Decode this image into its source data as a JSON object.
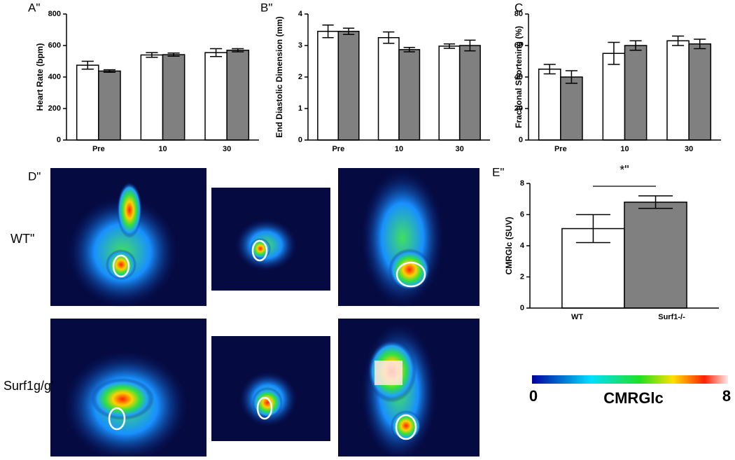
{
  "chart_data": [
    {
      "type": "bar",
      "panel_label": "A\"",
      "y_label": "Heart Rate (bpm)",
      "categories": [
        "Pre",
        "10",
        "30"
      ],
      "series": [
        {
          "color": "#ffffff",
          "values": [
            475,
            540,
            555
          ],
          "errors": [
            25,
            15,
            25
          ]
        },
        {
          "color": "#808080",
          "values": [
            438,
            542,
            570
          ],
          "errors": [
            8,
            10,
            10
          ]
        }
      ],
      "ylim": [
        0,
        800
      ],
      "yticks": [
        0,
        200,
        400,
        600,
        800
      ]
    },
    {
      "type": "bar",
      "panel_label": "B\"",
      "y_label": "End Diastolic Dimension (mm)",
      "categories": [
        "Pre",
        "10",
        "30"
      ],
      "series": [
        {
          "color": "#ffffff",
          "values": [
            3.45,
            3.25,
            2.98
          ],
          "errors": [
            0.2,
            0.18,
            0.07
          ]
        },
        {
          "color": "#808080",
          "values": [
            3.45,
            2.87,
            3.0
          ],
          "errors": [
            0.1,
            0.07,
            0.17
          ]
        }
      ],
      "ylim": [
        0,
        4
      ],
      "yticks": [
        0,
        1,
        2,
        3,
        4
      ]
    },
    {
      "type": "bar",
      "panel_label": "C",
      "y_label": "Fractional Shortening (%)",
      "categories": [
        "Pre",
        "10",
        "30"
      ],
      "series": [
        {
          "color": "#ffffff",
          "values": [
            45,
            55,
            63
          ],
          "errors": [
            3,
            7,
            3
          ]
        },
        {
          "color": "#808080",
          "values": [
            40,
            60,
            61
          ],
          "errors": [
            4,
            3,
            3
          ]
        }
      ],
      "ylim": [
        0,
        80
      ],
      "yticks": [
        0,
        20,
        40,
        60,
        80
      ]
    },
    {
      "type": "bar",
      "panel_label": "E\"",
      "y_label": "CMRGlc (SUV)",
      "categories": [
        "WT",
        "Surf1-/-"
      ],
      "values": [
        5.1,
        6.8
      ],
      "errors": [
        0.9,
        0.4
      ],
      "colors": [
        "#ffffff",
        "#808080"
      ],
      "annotation": "*\"",
      "ylim": [
        0,
        8
      ],
      "yticks": [
        0,
        2,
        4,
        6,
        8
      ]
    }
  ],
  "images": {
    "panel_label": "D\"",
    "row_labels": [
      "WT\"",
      "Surf1g/g'"
    ]
  },
  "colorbar": {
    "min": 0,
    "max": 8,
    "label": "CMRGlc"
  }
}
